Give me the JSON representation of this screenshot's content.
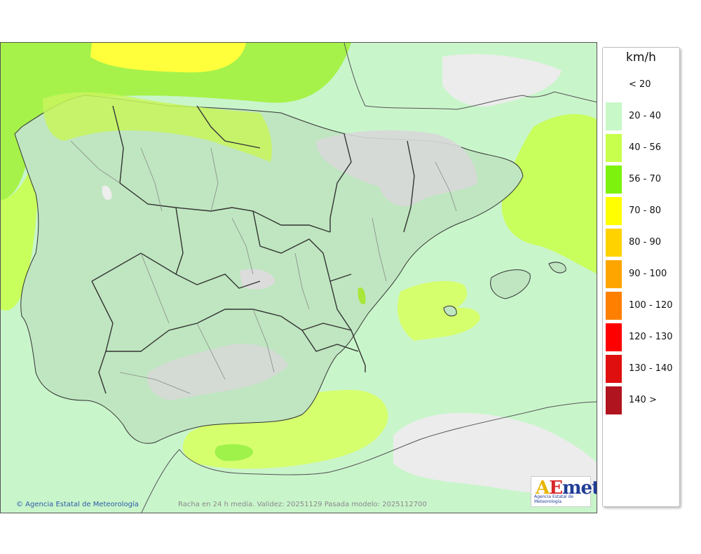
{
  "legend": {
    "unit": "km/h",
    "items": [
      {
        "label": "< 20",
        "color": "#ffffff"
      },
      {
        "label": "20 - 40",
        "color": "#c8f7c8"
      },
      {
        "label": "40 - 56",
        "color": "#c8ff4c"
      },
      {
        "label": "56 - 70",
        "color": "#7cf20d"
      },
      {
        "label": "70 - 80",
        "color": "#ffff00"
      },
      {
        "label": "80 - 90",
        "color": "#ffd200"
      },
      {
        "label": "90 - 100",
        "color": "#ffa500"
      },
      {
        "label": "100 - 120",
        "color": "#ff8000"
      },
      {
        "label": "120 - 130",
        "color": "#ff0000"
      },
      {
        "label": "130 - 140",
        "color": "#e00f0f"
      },
      {
        "label": "140 >",
        "color": "#b0141e"
      }
    ]
  },
  "footer": {
    "credit": "© Agencia Estatal de Meteorología",
    "validity": "Racha en 24 h media. Validez: 20251129 Pasada modelo: 2025112700"
  },
  "logo": {
    "subtitle": "Agencia Estatal de Meteorología"
  }
}
